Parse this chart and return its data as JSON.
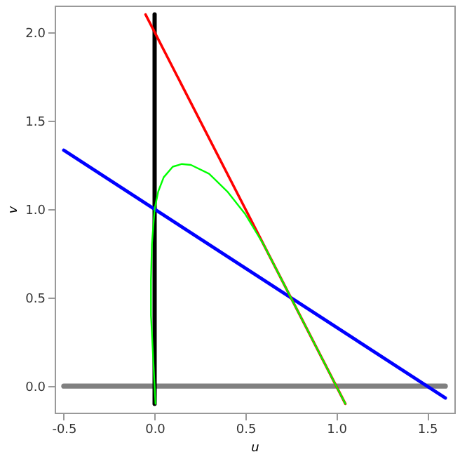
{
  "chart_data": {
    "type": "line",
    "xlabel": "u",
    "ylabel": "v",
    "xlim": [
      -0.55,
      1.65
    ],
    "ylim": [
      -0.15,
      2.15
    ],
    "xticks": [
      {
        "value": -0.5,
        "label": "-0.5"
      },
      {
        "value": 0,
        "label": "0.0"
      },
      {
        "value": 0.5,
        "label": "0.5"
      },
      {
        "value": 1,
        "label": "1.0"
      },
      {
        "value": 1.5,
        "label": "1.5"
      }
    ],
    "yticks": [
      {
        "value": 0,
        "label": "0.0"
      },
      {
        "value": 0.5,
        "label": "0.5"
      },
      {
        "value": 1,
        "label": "1.0"
      },
      {
        "value": 1.5,
        "label": "1.5"
      },
      {
        "value": 2,
        "label": "2.0"
      }
    ],
    "grid": false,
    "legend": false,
    "marker": "none",
    "line_style": "solid",
    "series": [
      {
        "color": "#808080",
        "x": [
          -0.5,
          1.6
        ],
        "values": [
          0,
          0
        ]
      },
      {
        "color": "#000000",
        "x": [
          0,
          0
        ],
        "values": [
          -0.1,
          2.1
        ]
      },
      {
        "color": "#0000ff",
        "x": [
          -0.5,
          1.6
        ],
        "values": [
          1.333,
          -0.067
        ]
      },
      {
        "color": "#ff0000",
        "x": [
          -0.05,
          1.05
        ],
        "values": [
          2.1,
          -0.1
        ]
      },
      {
        "color": "#00ff00",
        "x": [
          0.005,
          0,
          -0.01,
          -0.02,
          -0.02,
          -0.015,
          0,
          0.02,
          0.05,
          0.1,
          0.15,
          0.2,
          0.3,
          0.4,
          0.5,
          0.6,
          0.7,
          0.75,
          0.8,
          0.9,
          1.0,
          1.05
        ],
        "values": [
          -0.1,
          0,
          0.2,
          0.4,
          0.6,
          0.8,
          1.0,
          1.1,
          1.18,
          1.24,
          1.255,
          1.25,
          1.2,
          1.1,
          0.97,
          0.8,
          0.6,
          0.5,
          0.4,
          0.2,
          0.0,
          -0.1
        ]
      }
    ]
  }
}
